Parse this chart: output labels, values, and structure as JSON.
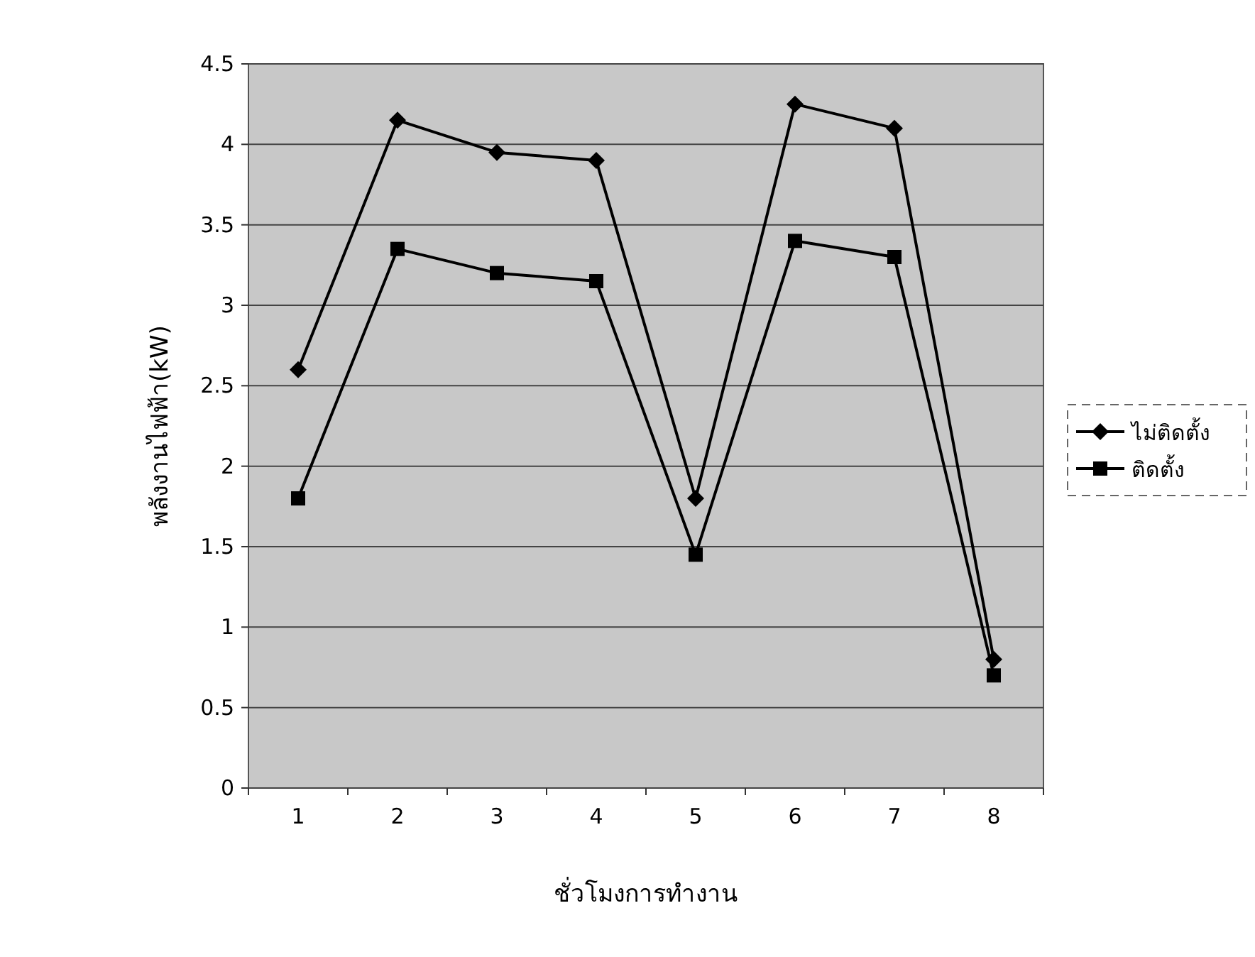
{
  "chart_data": {
    "type": "line",
    "xlabel": "ชั่วโมงการทำงาน",
    "ylabel": "พลังงานไฟฟ้า(kW)",
    "categories": [
      "1",
      "2",
      "3",
      "4",
      "5",
      "6",
      "7",
      "8"
    ],
    "series": [
      {
        "name": "ไม่ติดตั้ง",
        "color": "#000000",
        "marker": "diamond",
        "values": [
          2.6,
          4.15,
          3.95,
          3.9,
          1.8,
          4.25,
          4.1,
          0.8
        ]
      },
      {
        "name": "ติดตั้ง",
        "color": "#000000",
        "marker": "square",
        "values": [
          1.8,
          3.35,
          3.2,
          3.15,
          1.45,
          3.4,
          3.3,
          0.7
        ]
      }
    ],
    "ylim": [
      0,
      4.5
    ],
    "yticks": [
      0,
      0.5,
      1,
      1.5,
      2,
      2.5,
      3,
      3.5,
      4,
      4.5
    ],
    "grid": "y",
    "legend": "right",
    "line_style": "solid"
  }
}
